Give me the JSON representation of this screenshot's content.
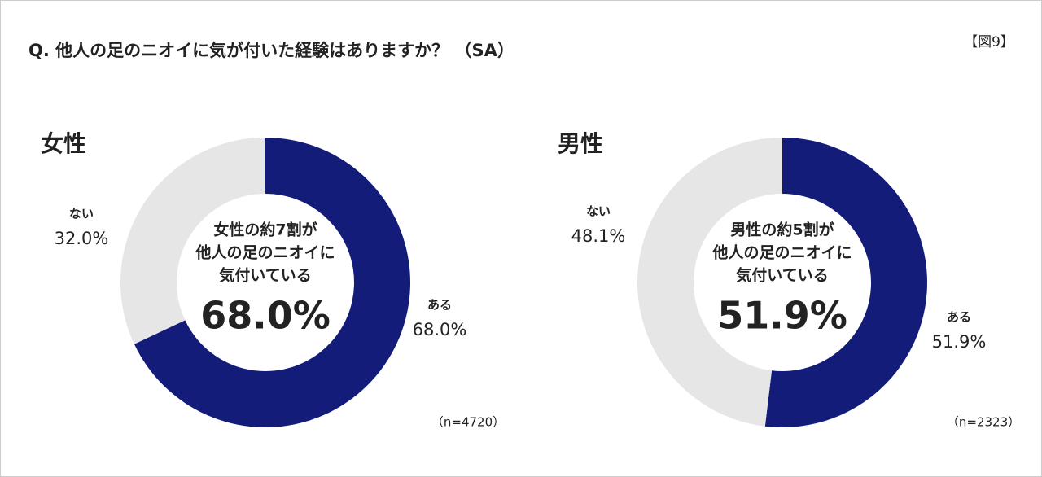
{
  "title": "Q. 他人の足のニオイに気が付いた経験はありますか？ （SA）",
  "figure_label": "【図9】",
  "chart_data": [
    {
      "type": "donut",
      "title": "女性",
      "categories": [
        "ある",
        "ない"
      ],
      "values": [
        68.0,
        32.0
      ],
      "value_labels": [
        "68.0%",
        "32.0%"
      ],
      "colors": [
        "#141c7a",
        "#e6e6e6"
      ],
      "label_colors": [
        "#141c7a",
        "#888888"
      ],
      "annotation": [
        "女性の約7割が",
        "他人の足のニオイに",
        "気付いている"
      ],
      "note": "（n=4720）"
    },
    {
      "type": "donut",
      "title": "男性",
      "categories": [
        "ある",
        "ない"
      ],
      "values": [
        51.9,
        48.1
      ],
      "value_labels": [
        "51.9%",
        "48.1%"
      ],
      "colors": [
        "#141c7a",
        "#e6e6e6"
      ],
      "label_colors": [
        "#141c7a",
        "#888888"
      ],
      "annotation": [
        "男性の約5割が",
        "他人の足のニオイに",
        "気付いている"
      ],
      "note": "（n=2323）"
    }
  ]
}
